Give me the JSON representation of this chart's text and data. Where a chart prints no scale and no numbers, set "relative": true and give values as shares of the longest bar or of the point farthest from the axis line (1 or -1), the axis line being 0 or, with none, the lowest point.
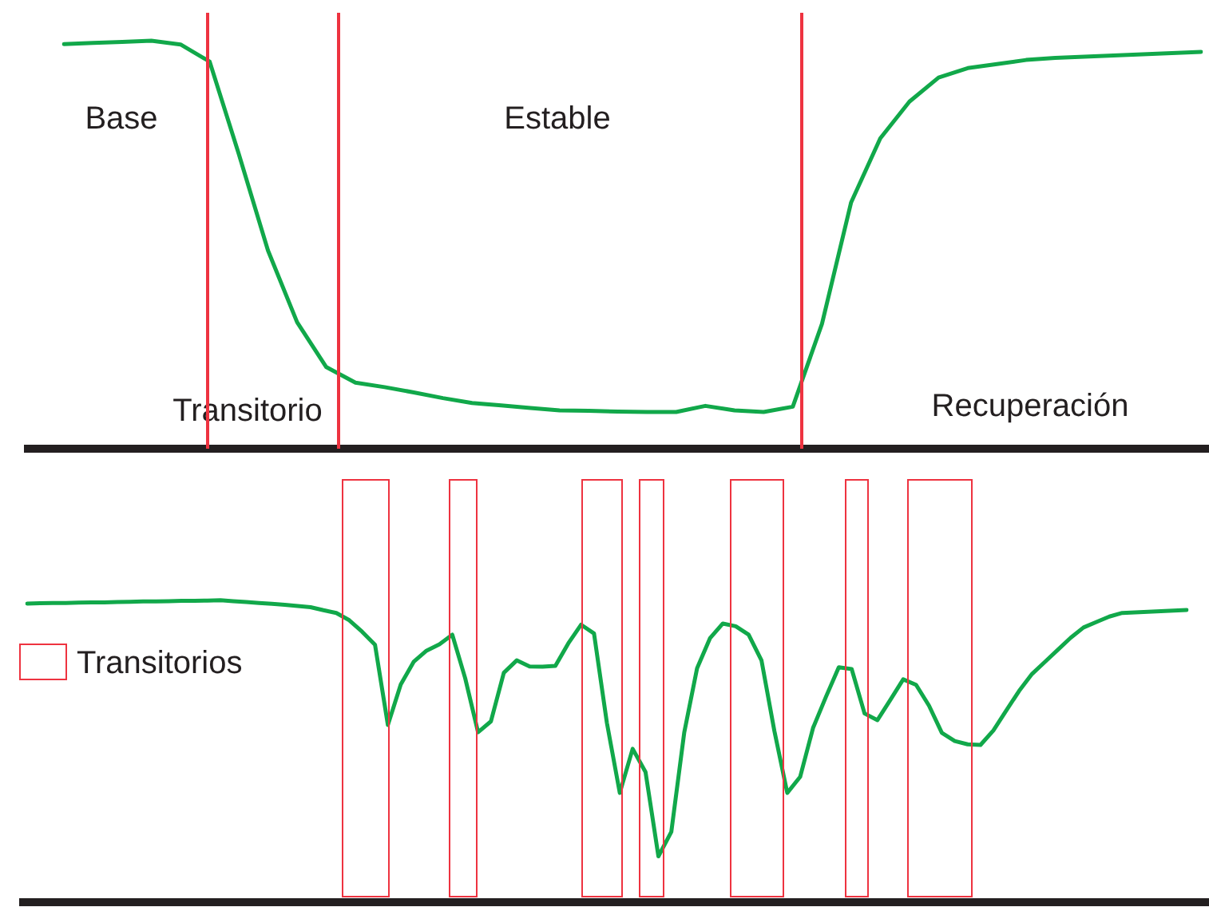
{
  "chart_data": [
    {
      "type": "line",
      "relative": true,
      "categories": [
        null,
        null,
        null,
        null,
        null,
        null,
        null,
        null,
        null,
        null,
        null,
        null,
        null,
        null,
        null,
        null,
        null,
        null,
        null,
        null,
        null,
        null,
        null,
        null,
        null,
        null,
        null,
        null,
        null,
        null,
        null,
        null,
        null,
        null,
        null,
        null,
        null,
        null,
        null,
        null
      ],
      "series": [
        {
          "color": "#11a84a",
          "values": [
            0.992,
            0.995,
            0.997,
            1.0,
            0.991,
            0.949,
            0.722,
            0.486,
            0.31,
            0.2,
            0.162,
            0.151,
            0.138,
            0.124,
            0.112,
            0.106,
            0.1,
            0.094,
            0.093,
            0.091,
            0.09,
            0.09,
            0.105,
            0.094,
            0.09,
            0.103,
            0.306,
            0.604,
            0.761,
            0.851,
            0.91,
            0.933,
            0.943,
            0.953,
            0.958,
            0.961,
            0.964,
            0.967,
            0.97,
            0.973
          ]
        }
      ],
      "annotations": [
        "Base",
        "Estable",
        "Transitorio",
        "Recuperación"
      ]
    },
    {
      "type": "line",
      "relative": true,
      "categories": [
        null,
        null,
        null,
        null,
        null,
        null,
        null,
        null,
        null,
        null,
        null,
        null,
        null,
        null,
        null,
        null,
        null,
        null,
        null,
        null,
        null,
        null,
        null,
        null,
        null,
        null,
        null,
        null,
        null,
        null,
        null,
        null,
        null,
        null,
        null,
        null,
        null,
        null,
        null,
        null,
        null,
        null,
        null,
        null,
        null,
        null,
        null,
        null,
        null,
        null,
        null,
        null,
        null,
        null,
        null,
        null,
        null,
        null,
        null,
        null,
        null,
        null,
        null,
        null,
        null,
        null,
        null,
        null,
        null,
        null,
        null,
        null,
        null,
        null,
        null,
        null,
        null,
        null,
        null,
        null,
        null,
        null,
        null,
        null,
        null,
        null,
        null,
        null,
        null,
        null,
        null
      ],
      "series": [
        {
          "color": "#11a84a",
          "values": [
            0.989,
            0.99,
            0.991,
            0.991,
            0.992,
            0.993,
            0.993,
            0.994,
            0.995,
            0.996,
            0.996,
            0.997,
            0.998,
            0.998,
            0.999,
            1.0,
            0.997,
            0.994,
            0.991,
            0.988,
            0.985,
            0.981,
            0.977,
            0.967,
            0.958,
            0.934,
            0.896,
            0.853,
            0.587,
            0.721,
            0.796,
            0.833,
            0.854,
            0.886,
            0.742,
            0.563,
            0.599,
            0.76,
            0.801,
            0.781,
            0.78,
            0.783,
            0.857,
            0.919,
            0.89,
            0.594,
            0.362,
            0.508,
            0.431,
            0.152,
            0.233,
            0.561,
            0.775,
            0.874,
            0.923,
            0.914,
            0.886,
            0.801,
            0.567,
            0.362,
            0.415,
            0.577,
            0.68,
            0.778,
            0.772,
            0.625,
            0.603,
            0.67,
            0.738,
            0.72,
            0.651,
            0.561,
            0.534,
            0.523,
            0.521,
            0.569,
            0.635,
            0.7,
            0.756,
            0.796,
            0.836,
            0.876,
            0.91,
            0.928,
            0.946,
            0.958,
            0.96,
            0.962,
            0.964,
            0.966,
            0.968
          ]
        }
      ],
      "annotations": [
        "Transitorios"
      ]
    }
  ]
}
